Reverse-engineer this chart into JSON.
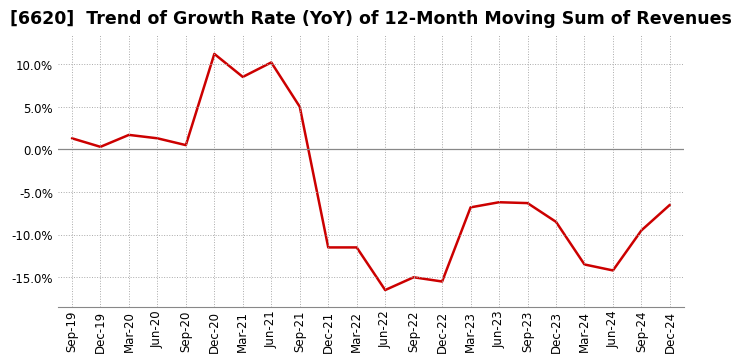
{
  "title": "[6620]  Trend of Growth Rate (YoY) of 12-Month Moving Sum of Revenues",
  "line_color": "#cc0000",
  "background_color": "#ffffff",
  "grid_color": "#aaaaaa",
  "x_labels": [
    "Sep-19",
    "Dec-19",
    "Mar-20",
    "Jun-20",
    "Sep-20",
    "Dec-20",
    "Mar-21",
    "Jun-21",
    "Sep-21",
    "Dec-21",
    "Mar-22",
    "Jun-22",
    "Sep-22",
    "Dec-22",
    "Mar-23",
    "Jun-23",
    "Sep-23",
    "Dec-23",
    "Mar-24",
    "Jun-24",
    "Sep-24",
    "Dec-24"
  ],
  "y_values": [
    1.3,
    0.3,
    1.7,
    1.3,
    0.5,
    11.2,
    8.5,
    10.2,
    5.0,
    -11.5,
    -11.5,
    -16.5,
    -15.0,
    -15.5,
    -6.8,
    -6.2,
    -6.3,
    -8.5,
    -13.5,
    -14.2,
    -9.5,
    -6.5
  ],
  "ylim": [
    -18.5,
    13.5
  ],
  "yticks": [
    -15.0,
    -10.0,
    -5.0,
    0.0,
    5.0,
    10.0
  ],
  "title_fontsize": 12.5,
  "tick_fontsize": 8.5,
  "line_width": 1.8
}
